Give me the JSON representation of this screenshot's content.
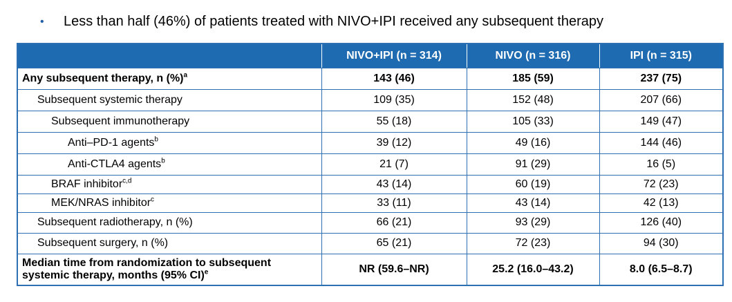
{
  "bullet": {
    "symbol": "•",
    "text": "Less than half (46%) of patients treated with NIVO+IPI received any subsequent therapy"
  },
  "table": {
    "headers": [
      "",
      "NIVO+IPI (n = 314)",
      "NIVO (n = 316)",
      "IPI (n = 315)"
    ],
    "rows": [
      {
        "label": "Any subsequent therapy, n (%)",
        "sup": "a",
        "values": [
          "143 (46)",
          "185 (59)",
          "237 (75)"
        ]
      },
      {
        "label": "Subsequent systemic therapy",
        "sup": "",
        "values": [
          "109 (35)",
          "152 (48)",
          "207 (66)"
        ]
      },
      {
        "label": "Subsequent immunotherapy",
        "sup": "",
        "values": [
          "55 (18)",
          "105 (33)",
          "149 (47)"
        ]
      },
      {
        "label": "Anti–PD-1 agents",
        "sup": "b",
        "values": [
          "39 (12)",
          "49 (16)",
          "144 (46)"
        ]
      },
      {
        "label": "Anti-CTLA4 agents",
        "sup": "b",
        "values": [
          "21 (7)",
          "91 (29)",
          "16 (5)"
        ]
      },
      {
        "label": "BRAF inhibitor",
        "sup": "c,d",
        "values": [
          "43 (14)",
          "60 (19)",
          "72 (23)"
        ]
      },
      {
        "label": "MEK/NRAS inhibitor",
        "sup": "c",
        "values": [
          "33 (11)",
          "43 (14)",
          "42 (13)"
        ]
      },
      {
        "label": "Subsequent radiotherapy, n (%)",
        "sup": "",
        "values": [
          "66 (21)",
          "93 (29)",
          "126 (40)"
        ]
      },
      {
        "label": "Subsequent surgery, n (%)",
        "sup": "",
        "values": [
          "65 (21)",
          "72 (23)",
          "94 (30)"
        ]
      },
      {
        "label": "Median time from randomization to subsequent systemic therapy, months (95% CI)",
        "sup": "e",
        "values": [
          "NR (59.6–NR)",
          "25.2 (16.0–43.2)",
          "8.0 (6.5–8.7)"
        ]
      }
    ]
  },
  "colors": {
    "header_bg": "#1f6bb1",
    "border": "#2c6fb3",
    "bullet": "#1f5fa8"
  }
}
